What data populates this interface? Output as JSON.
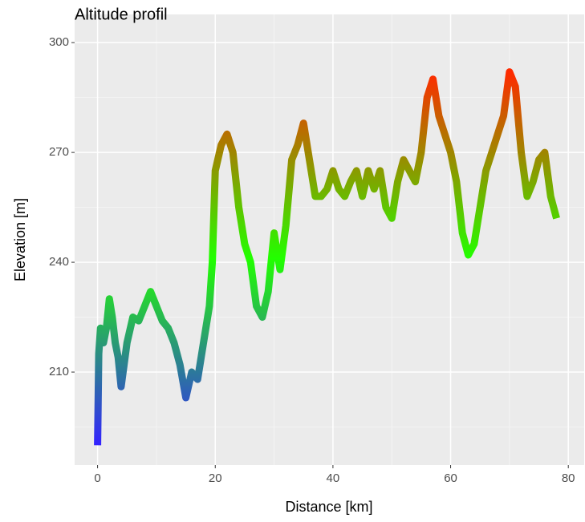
{
  "chart_data": {
    "type": "line",
    "title": "Altitude profil",
    "x_label": "Distance [km]",
    "y_label": "Elevation [m]",
    "x": [
      0,
      0.2,
      0.5,
      1,
      1.5,
      2,
      2.5,
      3,
      3.5,
      4,
      4.5,
      5,
      6,
      7,
      8,
      9,
      10,
      11,
      12,
      13,
      14,
      15,
      16,
      17,
      18,
      19,
      19.5,
      20,
      21,
      22,
      23,
      24,
      25,
      26,
      27,
      28,
      29,
      30,
      31,
      32,
      33,
      34,
      35,
      36,
      37,
      38,
      39,
      40,
      41,
      42,
      43,
      44,
      45,
      46,
      47,
      48,
      49,
      50,
      51,
      52,
      53,
      54,
      55,
      56,
      57,
      58,
      59,
      60,
      61,
      62,
      63,
      64,
      65,
      66,
      67,
      68,
      69,
      70,
      71,
      72,
      73,
      74,
      75,
      76,
      77,
      78
    ],
    "series": [
      {
        "values": [
          190,
          215,
          222,
          218,
          222,
          230,
          225,
          218,
          214,
          206,
          212,
          218,
          225,
          224,
          228,
          232,
          228,
          224,
          222,
          218,
          212,
          203,
          210,
          208,
          218,
          228,
          240,
          265,
          272,
          275,
          270,
          255,
          245,
          240,
          228,
          225,
          232,
          248,
          238,
          250,
          268,
          272,
          278,
          268,
          258,
          258,
          260,
          265,
          260,
          258,
          262,
          265,
          258,
          265,
          260,
          265,
          255,
          252,
          262,
          268,
          265,
          262,
          270,
          285,
          290,
          280,
          275,
          270,
          262,
          248,
          242,
          245,
          255,
          265,
          270,
          275,
          280,
          292,
          288,
          270,
          258,
          262,
          268,
          270,
          258,
          252
        ],
        "colors": [
          "#3322ff",
          "#22ff00",
          "#ff2a00"
        ]
      }
    ],
    "xlim": [
      -3.9,
      82.7
    ],
    "ylim": [
      184.6,
      307.7
    ],
    "xticks": [
      0,
      20,
      40,
      60,
      80
    ],
    "yticks": [
      210,
      240,
      270,
      300
    ],
    "xminorticks": [
      10,
      30,
      50,
      70
    ],
    "yminorticks": [
      195,
      225,
      255,
      285
    ],
    "grid": true
  }
}
